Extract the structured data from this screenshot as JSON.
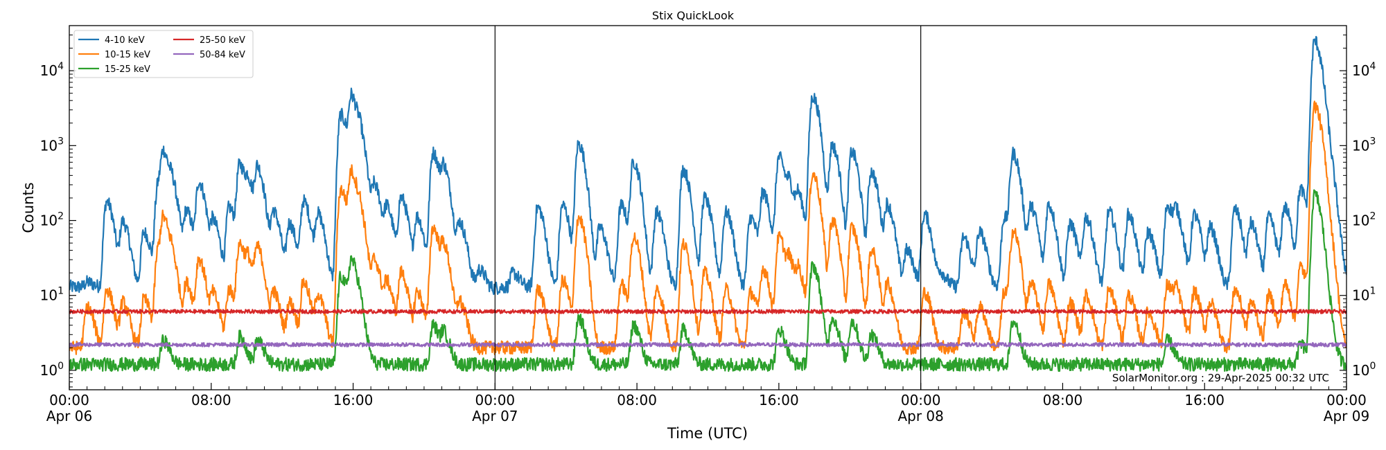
{
  "chart_data": {
    "type": "line",
    "title": "Stix QuickLook",
    "xlabel": "Time (UTC)",
    "ylabel": "Counts",
    "yscale": "log",
    "ylim": [
      0.55,
      40000
    ],
    "xlim_hours": [
      0,
      72
    ],
    "grid": false,
    "legend_position": "top-left",
    "x_ticks": [
      {
        "hour": 0,
        "time": "00:00",
        "date": "Apr 06"
      },
      {
        "hour": 8,
        "time": "08:00",
        "date": ""
      },
      {
        "hour": 16,
        "time": "16:00",
        "date": ""
      },
      {
        "hour": 24,
        "time": "00:00",
        "date": "Apr 07"
      },
      {
        "hour": 32,
        "time": "08:00",
        "date": ""
      },
      {
        "hour": 40,
        "time": "16:00",
        "date": ""
      },
      {
        "hour": 48,
        "time": "00:00",
        "date": "Apr 08"
      },
      {
        "hour": 56,
        "time": "08:00",
        "date": ""
      },
      {
        "hour": 64,
        "time": "16:00",
        "date": ""
      },
      {
        "hour": 72,
        "time": "00:00",
        "date": "Apr 09"
      }
    ],
    "y_ticks": [
      {
        "value": 1,
        "base": "10",
        "exp": "0"
      },
      {
        "value": 10,
        "base": "10",
        "exp": "1"
      },
      {
        "value": 100,
        "base": "10",
        "exp": "2"
      },
      {
        "value": 1000,
        "base": "10",
        "exp": "3"
      },
      {
        "value": 10000,
        "base": "10",
        "exp": "4"
      }
    ],
    "day_boundaries_hours": [
      24,
      48
    ],
    "series": [
      {
        "name": "4-10 keV",
        "color": "#1f77b4",
        "baseline": 13,
        "peaks": [
          [
            1.0,
            15
          ],
          [
            2.1,
            180
          ],
          [
            3.0,
            95
          ],
          [
            4.2,
            70
          ],
          [
            5.0,
            300
          ],
          [
            5.3,
            700
          ],
          [
            5.8,
            220
          ],
          [
            6.6,
            130
          ],
          [
            7.3,
            320
          ],
          [
            8.1,
            95
          ],
          [
            9.0,
            150
          ],
          [
            9.6,
            550
          ],
          [
            10.1,
            250
          ],
          [
            10.6,
            480
          ],
          [
            11.5,
            130
          ],
          [
            12.4,
            90
          ],
          [
            13.2,
            180
          ],
          [
            14.0,
            120
          ],
          [
            15.3,
            2600
          ],
          [
            15.9,
            4400
          ],
          [
            16.4,
            900
          ],
          [
            17.2,
            280
          ],
          [
            17.9,
            140
          ],
          [
            18.7,
            200
          ],
          [
            19.6,
            110
          ],
          [
            20.5,
            800
          ],
          [
            21.1,
            460
          ],
          [
            22.0,
            90
          ],
          [
            23.1,
            22
          ],
          [
            23.7,
            12
          ],
          [
            25.0,
            20
          ],
          [
            26.4,
            150
          ],
          [
            27.8,
            160
          ],
          [
            28.7,
            1050
          ],
          [
            29.9,
            80
          ],
          [
            31.1,
            160
          ],
          [
            31.8,
            600
          ],
          [
            33.1,
            130
          ],
          [
            34.6,
            480
          ],
          [
            35.8,
            200
          ],
          [
            37.0,
            130
          ],
          [
            38.4,
            110
          ],
          [
            39.1,
            230
          ],
          [
            40.0,
            700
          ],
          [
            40.6,
            250
          ],
          [
            41.1,
            180
          ],
          [
            41.9,
            4500
          ],
          [
            43.0,
            1000
          ],
          [
            44.1,
            820
          ],
          [
            45.2,
            450
          ],
          [
            46.1,
            160
          ],
          [
            47.2,
            40
          ],
          [
            48.2,
            120
          ],
          [
            49.1,
            20
          ],
          [
            50.4,
            60
          ],
          [
            51.3,
            70
          ],
          [
            52.7,
            110
          ],
          [
            53.2,
            760
          ],
          [
            54.2,
            150
          ],
          [
            55.2,
            160
          ],
          [
            56.4,
            90
          ],
          [
            57.3,
            110
          ],
          [
            58.6,
            130
          ],
          [
            59.7,
            120
          ],
          [
            60.8,
            70
          ],
          [
            61.9,
            160
          ],
          [
            62.4,
            110
          ],
          [
            63.4,
            120
          ],
          [
            64.3,
            80
          ],
          [
            65.7,
            140
          ],
          [
            66.6,
            90
          ],
          [
            67.6,
            110
          ],
          [
            68.5,
            150
          ],
          [
            69.4,
            260
          ],
          [
            70.2,
            25000
          ],
          [
            70.9,
            700
          ],
          [
            71.5,
            30
          ]
        ]
      },
      {
        "name": "10-15 keV",
        "color": "#ff7f0e",
        "baseline": 2,
        "peaks": [
          [
            1.0,
            7
          ],
          [
            2.1,
            12
          ],
          [
            3.0,
            8
          ],
          [
            4.2,
            9
          ],
          [
            5.0,
            40
          ],
          [
            5.3,
            90
          ],
          [
            5.8,
            22
          ],
          [
            6.6,
            14
          ],
          [
            7.3,
            30
          ],
          [
            8.1,
            10
          ],
          [
            9.0,
            12
          ],
          [
            9.6,
            48
          ],
          [
            10.1,
            22
          ],
          [
            10.6,
            40
          ],
          [
            11.5,
            11
          ],
          [
            12.4,
            8
          ],
          [
            13.2,
            15
          ],
          [
            14.0,
            10
          ],
          [
            15.3,
            260
          ],
          [
            15.9,
            420
          ],
          [
            16.4,
            80
          ],
          [
            17.2,
            28
          ],
          [
            17.9,
            14
          ],
          [
            18.7,
            20
          ],
          [
            19.6,
            11
          ],
          [
            20.5,
            80
          ],
          [
            21.1,
            40
          ],
          [
            22.0,
            8
          ],
          [
            26.4,
            12
          ],
          [
            27.8,
            16
          ],
          [
            28.7,
            110
          ],
          [
            31.1,
            14
          ],
          [
            31.8,
            60
          ],
          [
            33.1,
            12
          ],
          [
            34.6,
            48
          ],
          [
            35.8,
            20
          ],
          [
            37.0,
            12
          ],
          [
            38.4,
            11
          ],
          [
            39.1,
            22
          ],
          [
            40.0,
            60
          ],
          [
            40.6,
            25
          ],
          [
            41.1,
            18
          ],
          [
            41.9,
            420
          ],
          [
            43.0,
            100
          ],
          [
            44.1,
            80
          ],
          [
            45.2,
            40
          ],
          [
            46.1,
            14
          ],
          [
            48.2,
            11
          ],
          [
            50.4,
            6
          ],
          [
            51.3,
            7
          ],
          [
            52.7,
            11
          ],
          [
            53.2,
            70
          ],
          [
            54.2,
            14
          ],
          [
            55.2,
            14
          ],
          [
            56.4,
            8
          ],
          [
            57.3,
            10
          ],
          [
            58.6,
            12
          ],
          [
            59.7,
            10
          ],
          [
            60.8,
            6
          ],
          [
            61.9,
            14
          ],
          [
            62.4,
            10
          ],
          [
            63.4,
            11
          ],
          [
            64.3,
            8
          ],
          [
            65.7,
            12
          ],
          [
            66.6,
            8
          ],
          [
            67.6,
            10
          ],
          [
            68.5,
            14
          ],
          [
            69.4,
            24
          ],
          [
            70.2,
            3400
          ],
          [
            70.9,
            60
          ]
        ]
      },
      {
        "name": "15-25 keV",
        "color": "#2ca02c",
        "baseline": 1.2,
        "peaks": [
          [
            5.3,
            2.5
          ],
          [
            9.6,
            2.8
          ],
          [
            10.6,
            2.5
          ],
          [
            15.3,
            18
          ],
          [
            15.9,
            28
          ],
          [
            16.4,
            3.5
          ],
          [
            20.5,
            4
          ],
          [
            21.1,
            3
          ],
          [
            28.7,
            5
          ],
          [
            31.8,
            4
          ],
          [
            34.6,
            3.5
          ],
          [
            40.0,
            3.5
          ],
          [
            41.9,
            25
          ],
          [
            43.0,
            5
          ],
          [
            44.1,
            4.5
          ],
          [
            45.2,
            3
          ],
          [
            53.2,
            4.5
          ],
          [
            61.9,
            2.5
          ],
          [
            69.4,
            2.2
          ],
          [
            70.2,
            220
          ],
          [
            70.9,
            5
          ]
        ]
      },
      {
        "name": "25-50 keV",
        "color": "#d62728",
        "baseline": 6.1,
        "peaks": []
      },
      {
        "name": "50-84 keV",
        "color": "#9467bd",
        "baseline": 2.2,
        "peaks": []
      }
    ],
    "credit": "SolarMonitor.org : 29-Apr-2025 00:32 UTC"
  }
}
